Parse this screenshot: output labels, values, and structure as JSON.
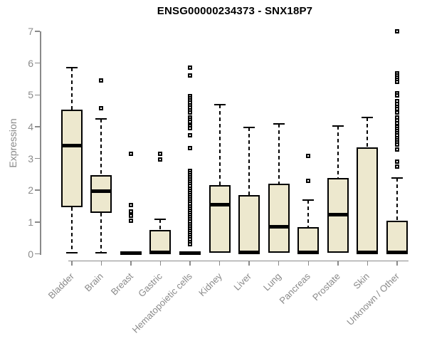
{
  "chart_data": {
    "type": "box",
    "title": "ENSG00000234373 - SNX18P7",
    "ylabel": "Expression",
    "xlabel": "",
    "ylim": [
      0,
      7
    ],
    "yticks": [
      0,
      1,
      2,
      3,
      4,
      5,
      6,
      7
    ],
    "grid": false,
    "legend": "none",
    "categories": [
      "Bladder",
      "Brain",
      "Breast",
      "Gastric",
      "Hematopoietic cells",
      "Kidney",
      "Liver",
      "Lung",
      "Pancreas",
      "Prostate",
      "Skin",
      "Unknown / Other"
    ],
    "series": [
      {
        "name": "Bladder",
        "low": 0.03,
        "q1": 1.46,
        "median": 3.41,
        "q3": 4.53,
        "high": 5.85,
        "outliers": []
      },
      {
        "name": "Brain",
        "low": 0.03,
        "q1": 1.28,
        "median": 1.98,
        "q3": 2.47,
        "high": 4.24,
        "outliers": [
          5.45,
          4.57
        ]
      },
      {
        "name": "Breast",
        "low": 0.0,
        "q1": 0.0,
        "median": 0.03,
        "q3": 0.06,
        "high": 0.08,
        "outliers": [
          3.15,
          1.53,
          1.34,
          1.2,
          1.05
        ]
      },
      {
        "name": "Gastric",
        "low": 0.0,
        "q1": 0.02,
        "median": 0.05,
        "q3": 0.75,
        "high": 1.09,
        "outliers": [
          3.15,
          2.97
        ]
      },
      {
        "name": "Hematopoietic cells",
        "low": 0.0,
        "q1": 0.0,
        "median": 0.03,
        "q3": 0.07,
        "high": 0.1,
        "outliers": [
          5.85,
          5.6,
          4.97,
          4.9,
          4.83,
          4.76,
          4.68,
          4.6,
          4.52,
          4.45,
          4.3,
          4.22,
          4.15,
          4.02,
          3.95,
          3.73,
          3.32,
          2.62,
          2.55,
          2.48,
          2.41,
          2.34,
          2.27,
          2.2,
          2.13,
          2.06,
          1.99,
          1.92,
          1.85,
          1.78,
          1.71,
          1.64,
          1.57,
          1.5,
          1.43,
          1.36,
          1.29,
          1.22,
          1.15,
          1.08,
          1.01,
          0.94,
          0.87,
          0.8,
          0.73,
          0.66,
          0.59,
          0.52,
          0.45,
          0.38,
          0.31
        ]
      },
      {
        "name": "Kidney",
        "low": 0.0,
        "q1": 0.04,
        "median": 1.55,
        "q3": 2.16,
        "high": 4.7,
        "outliers": []
      },
      {
        "name": "Liver",
        "low": 0.0,
        "q1": 0.02,
        "median": 0.05,
        "q3": 1.84,
        "high": 3.98,
        "outliers": []
      },
      {
        "name": "Lung",
        "low": 0.0,
        "q1": 0.04,
        "median": 0.85,
        "q3": 2.2,
        "high": 4.08,
        "outliers": []
      },
      {
        "name": "Pancreas",
        "low": 0.0,
        "q1": 0.02,
        "median": 0.05,
        "q3": 0.83,
        "high": 1.7,
        "outliers": [
          3.08,
          2.3
        ]
      },
      {
        "name": "Prostate",
        "low": 0.0,
        "q1": 0.04,
        "median": 1.24,
        "q3": 2.38,
        "high": 4.03,
        "outliers": []
      },
      {
        "name": "Skin",
        "low": 0.0,
        "q1": 0.02,
        "median": 0.05,
        "q3": 3.35,
        "high": 4.28,
        "outliers": []
      },
      {
        "name": "Unknown / Other",
        "low": 0.0,
        "q1": 0.02,
        "median": 0.05,
        "q3": 1.05,
        "high": 2.38,
        "outliers": [
          7.0,
          5.68,
          5.61,
          5.54,
          5.47,
          5.4,
          5.06,
          4.98,
          4.8,
          4.72,
          4.63,
          4.55,
          4.45,
          4.3,
          4.2,
          4.1,
          4.0,
          3.93,
          3.86,
          3.79,
          3.72,
          3.65,
          3.58,
          3.51,
          3.44,
          3.28,
          2.9,
          2.74
        ]
      }
    ],
    "style": {
      "box_fill": "#ede8ce",
      "box_border": "#000000",
      "axis_color": "#8a8a8a",
      "label_color": "#8a8a8a",
      "title_color": "#000000",
      "background": "#ffffff"
    }
  }
}
